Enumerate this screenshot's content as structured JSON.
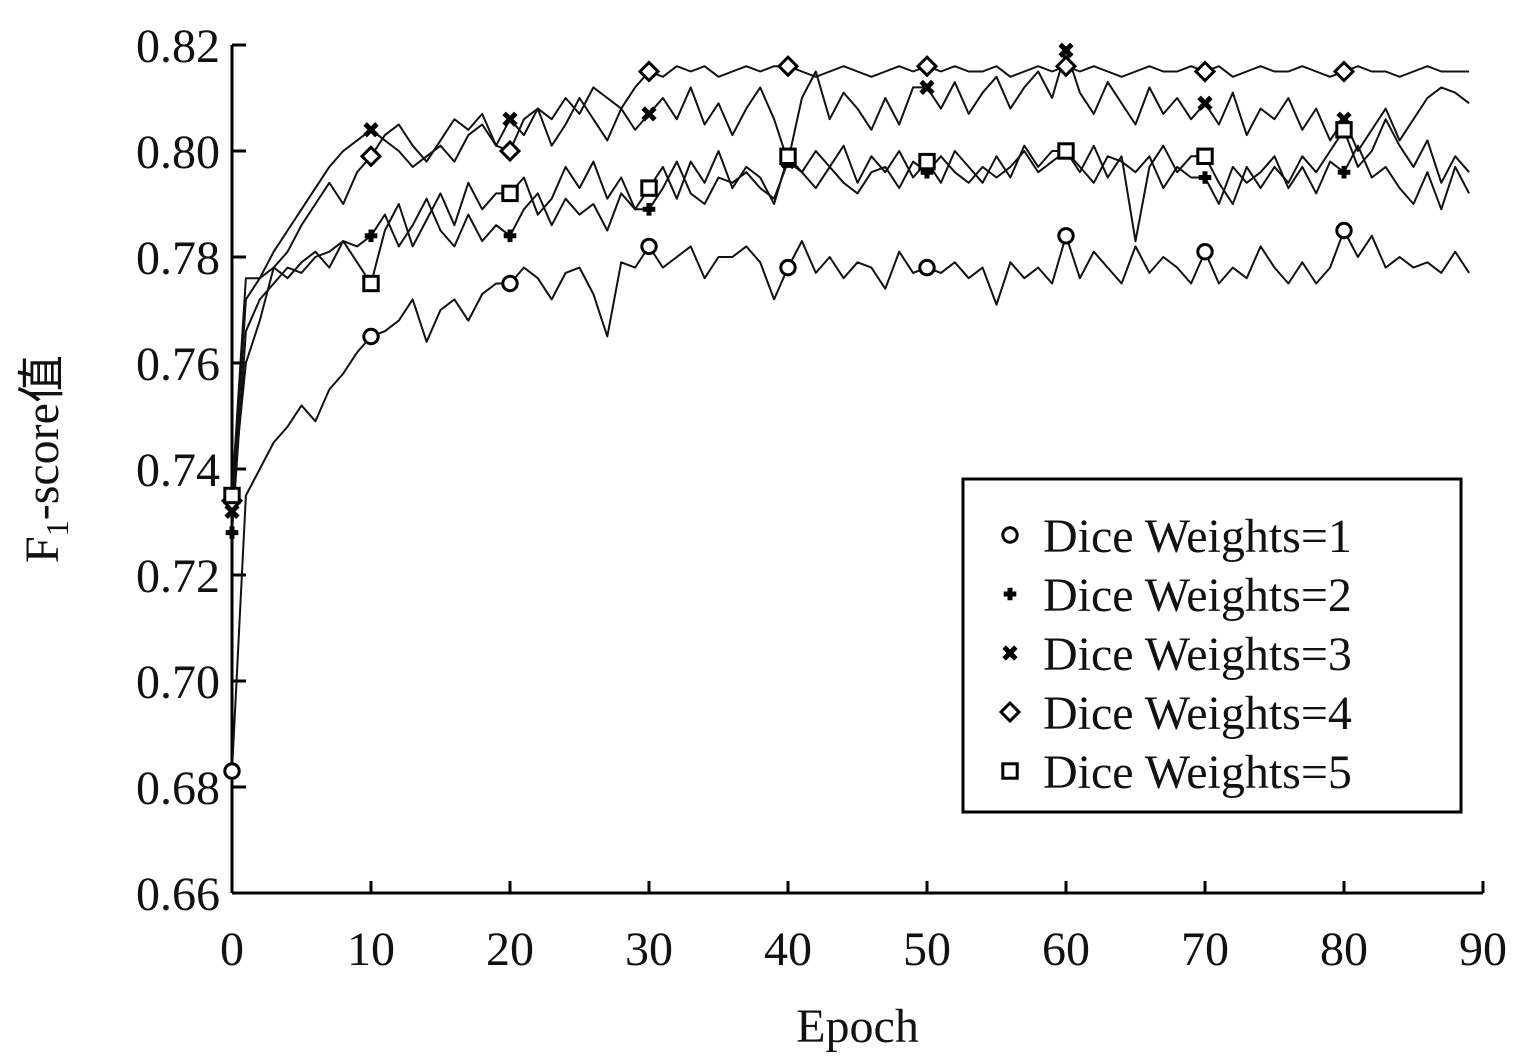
{
  "chart_data": {
    "type": "line",
    "xlabel": "Epoch",
    "ylabel_main": "F",
    "ylabel_sub": "1",
    "ylabel_rest": "-score值",
    "xlim": [
      0,
      90
    ],
    "ylim": [
      0.66,
      0.82
    ],
    "xticks": [
      "0",
      "10",
      "20",
      "30",
      "40",
      "50",
      "60",
      "70",
      "80",
      "90"
    ],
    "yticks": [
      "0.66",
      "0.68",
      "0.70",
      "0.72",
      "0.74",
      "0.76",
      "0.78",
      "0.80",
      "0.82"
    ],
    "grid": false,
    "legend_position": "bottom-right",
    "x": [
      0,
      1,
      2,
      3,
      4,
      5,
      6,
      7,
      8,
      9,
      10,
      11,
      12,
      13,
      14,
      15,
      16,
      17,
      18,
      19,
      20,
      21,
      22,
      23,
      24,
      25,
      26,
      27,
      28,
      29,
      30,
      31,
      32,
      33,
      34,
      35,
      36,
      37,
      38,
      39,
      40,
      41,
      42,
      43,
      44,
      45,
      46,
      47,
      48,
      49,
      50,
      51,
      52,
      53,
      54,
      55,
      56,
      57,
      58,
      59,
      60,
      61,
      62,
      63,
      64,
      65,
      66,
      67,
      68,
      69,
      70,
      71,
      72,
      73,
      74,
      75,
      76,
      77,
      78,
      79,
      80,
      81,
      82,
      83,
      84,
      85,
      86,
      87,
      88,
      89
    ],
    "marker_epochs": [
      0,
      10,
      20,
      30,
      40,
      50,
      60,
      70,
      80
    ],
    "series": [
      {
        "name": "Dice Weights=1",
        "marker": "circle",
        "values": [
          0.683,
          0.735,
          0.74,
          0.745,
          0.748,
          0.752,
          0.749,
          0.755,
          0.758,
          0.762,
          0.765,
          0.766,
          0.768,
          0.772,
          0.764,
          0.77,
          0.772,
          0.768,
          0.773,
          0.775,
          0.775,
          0.778,
          0.776,
          0.772,
          0.777,
          0.778,
          0.773,
          0.765,
          0.779,
          0.778,
          0.782,
          0.778,
          0.78,
          0.782,
          0.776,
          0.78,
          0.78,
          0.782,
          0.779,
          0.772,
          0.778,
          0.783,
          0.777,
          0.78,
          0.776,
          0.779,
          0.778,
          0.774,
          0.781,
          0.777,
          0.778,
          0.777,
          0.779,
          0.776,
          0.778,
          0.771,
          0.779,
          0.776,
          0.778,
          0.775,
          0.784,
          0.776,
          0.781,
          0.778,
          0.775,
          0.782,
          0.777,
          0.78,
          0.778,
          0.775,
          0.781,
          0.775,
          0.778,
          0.776,
          0.782,
          0.778,
          0.775,
          0.779,
          0.775,
          0.778,
          0.785,
          0.78,
          0.784,
          0.778,
          0.78,
          0.778,
          0.779,
          0.777,
          0.781,
          0.777
        ]
      },
      {
        "name": "Dice Weights=2",
        "marker": "plus",
        "values": [
          0.728,
          0.766,
          0.772,
          0.775,
          0.778,
          0.777,
          0.78,
          0.781,
          0.783,
          0.782,
          0.784,
          0.788,
          0.782,
          0.786,
          0.791,
          0.785,
          0.782,
          0.788,
          0.783,
          0.786,
          0.784,
          0.789,
          0.792,
          0.786,
          0.791,
          0.788,
          0.79,
          0.785,
          0.792,
          0.789,
          0.789,
          0.793,
          0.798,
          0.792,
          0.79,
          0.795,
          0.794,
          0.796,
          0.793,
          0.791,
          0.798,
          0.796,
          0.793,
          0.797,
          0.794,
          0.792,
          0.796,
          0.797,
          0.793,
          0.798,
          0.796,
          0.799,
          0.796,
          0.794,
          0.797,
          0.795,
          0.797,
          0.8,
          0.796,
          0.798,
          0.8,
          0.797,
          0.794,
          0.799,
          0.798,
          0.796,
          0.799,
          0.793,
          0.797,
          0.795,
          0.795,
          0.79,
          0.797,
          0.794,
          0.796,
          0.799,
          0.793,
          0.797,
          0.792,
          0.798,
          0.796,
          0.801,
          0.795,
          0.797,
          0.793,
          0.79,
          0.796,
          0.789,
          0.797,
          0.792
        ]
      },
      {
        "name": "Dice Weights=3",
        "marker": "cross",
        "values": [
          0.732,
          0.772,
          0.776,
          0.781,
          0.785,
          0.789,
          0.793,
          0.797,
          0.8,
          0.802,
          0.804,
          0.802,
          0.8,
          0.797,
          0.799,
          0.801,
          0.798,
          0.803,
          0.805,
          0.801,
          0.806,
          0.803,
          0.808,
          0.801,
          0.805,
          0.81,
          0.806,
          0.802,
          0.808,
          0.804,
          0.807,
          0.81,
          0.806,
          0.812,
          0.805,
          0.809,
          0.803,
          0.808,
          0.812,
          0.806,
          0.798,
          0.81,
          0.815,
          0.806,
          0.811,
          0.808,
          0.804,
          0.81,
          0.805,
          0.812,
          0.812,
          0.808,
          0.813,
          0.807,
          0.811,
          0.814,
          0.808,
          0.812,
          0.815,
          0.81,
          0.819,
          0.811,
          0.807,
          0.813,
          0.809,
          0.805,
          0.812,
          0.807,
          0.81,
          0.806,
          0.809,
          0.805,
          0.811,
          0.803,
          0.808,
          0.806,
          0.81,
          0.804,
          0.808,
          0.802,
          0.806,
          0.8,
          0.804,
          0.808,
          0.802,
          0.806,
          0.81,
          0.812,
          0.811,
          0.809
        ]
      },
      {
        "name": "Dice Weights=4",
        "marker": "diamond",
        "values": [
          0.734,
          0.76,
          0.768,
          0.778,
          0.781,
          0.786,
          0.79,
          0.794,
          0.79,
          0.796,
          0.799,
          0.803,
          0.805,
          0.801,
          0.798,
          0.802,
          0.806,
          0.804,
          0.807,
          0.801,
          0.8,
          0.806,
          0.808,
          0.806,
          0.81,
          0.807,
          0.812,
          0.81,
          0.808,
          0.812,
          0.815,
          0.814,
          0.816,
          0.815,
          0.816,
          0.814,
          0.815,
          0.816,
          0.815,
          0.816,
          0.816,
          0.815,
          0.814,
          0.815,
          0.816,
          0.815,
          0.814,
          0.815,
          0.816,
          0.815,
          0.816,
          0.815,
          0.816,
          0.815,
          0.815,
          0.816,
          0.814,
          0.815,
          0.816,
          0.815,
          0.816,
          0.815,
          0.816,
          0.815,
          0.814,
          0.815,
          0.816,
          0.815,
          0.815,
          0.816,
          0.815,
          0.816,
          0.814,
          0.815,
          0.816,
          0.815,
          0.815,
          0.816,
          0.815,
          0.814,
          0.815,
          0.816,
          0.815,
          0.815,
          0.814,
          0.815,
          0.816,
          0.815,
          0.815,
          0.815
        ]
      },
      {
        "name": "Dice Weights=5",
        "marker": "square",
        "values": [
          0.735,
          0.776,
          0.776,
          0.778,
          0.776,
          0.779,
          0.781,
          0.778,
          0.783,
          0.779,
          0.775,
          0.785,
          0.79,
          0.782,
          0.787,
          0.792,
          0.786,
          0.794,
          0.789,
          0.792,
          0.792,
          0.795,
          0.788,
          0.791,
          0.797,
          0.793,
          0.798,
          0.791,
          0.795,
          0.789,
          0.793,
          0.797,
          0.791,
          0.798,
          0.794,
          0.8,
          0.793,
          0.797,
          0.795,
          0.79,
          0.799,
          0.796,
          0.8,
          0.797,
          0.801,
          0.794,
          0.799,
          0.796,
          0.8,
          0.795,
          0.798,
          0.794,
          0.8,
          0.797,
          0.794,
          0.799,
          0.795,
          0.801,
          0.797,
          0.8,
          0.8,
          0.796,
          0.801,
          0.795,
          0.799,
          0.783,
          0.797,
          0.801,
          0.796,
          0.799,
          0.799,
          0.794,
          0.79,
          0.797,
          0.793,
          0.797,
          0.794,
          0.799,
          0.796,
          0.8,
          0.804,
          0.797,
          0.8,
          0.806,
          0.801,
          0.797,
          0.802,
          0.794,
          0.799,
          0.796
        ]
      }
    ]
  }
}
